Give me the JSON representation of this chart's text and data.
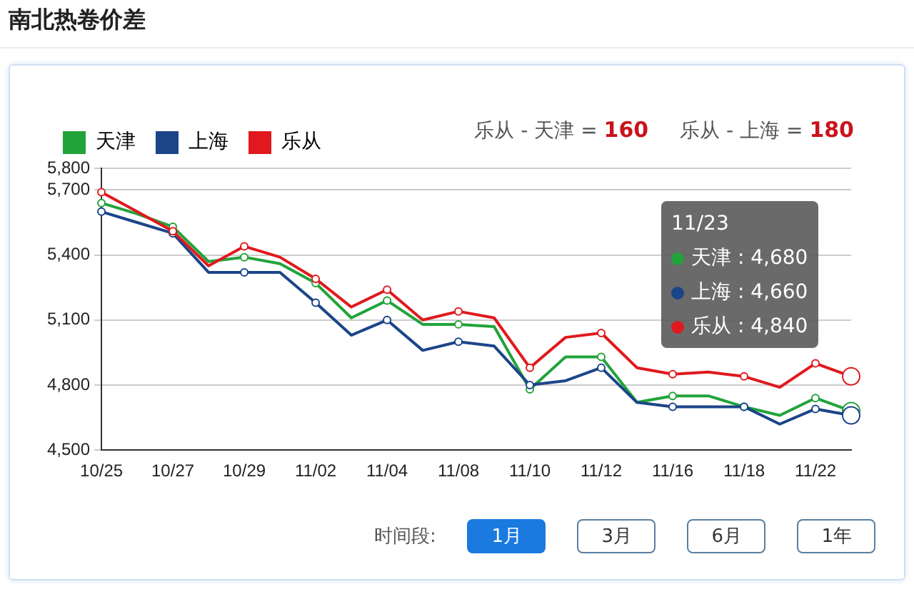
{
  "chart_data": {
    "type": "line",
    "title": "南北热卷价差",
    "categories": [
      "10/25",
      null,
      "10/27",
      null,
      "10/29",
      null,
      "11/02",
      null,
      "11/04",
      null,
      "11/08",
      null,
      "11/10",
      null,
      "11/12",
      null,
      "11/16",
      null,
      "11/18",
      null,
      "11/22",
      null
    ],
    "series": [
      {
        "name": "天津",
        "color": "#22a33a",
        "values": [
          5640,
          5590,
          5530,
          5370,
          5390,
          5360,
          5270,
          5110,
          5190,
          5080,
          5080,
          5070,
          4780,
          4930,
          4930,
          4720,
          4750,
          4750,
          4700,
          4660,
          4740,
          4680
        ]
      },
      {
        "name": "上海",
        "color": "#1b4589",
        "values": [
          5600,
          5550,
          5500,
          5320,
          5320,
          5320,
          5180,
          5030,
          5100,
          4960,
          5000,
          4980,
          4800,
          4820,
          4880,
          4720,
          4700,
          4700,
          4700,
          4620,
          4690,
          4660
        ]
      },
      {
        "name": "乐从",
        "color": "#e0191e",
        "values": [
          5690,
          5600,
          5510,
          5350,
          5440,
          5390,
          5290,
          5160,
          5240,
          5100,
          5140,
          5110,
          4880,
          5020,
          5040,
          4880,
          4850,
          4860,
          4840,
          4790,
          4900,
          4840
        ]
      }
    ],
    "ylim": [
      4500,
      5800
    ],
    "yticks": [
      {
        "value": 4500,
        "label": "4,500"
      },
      {
        "value": 4800,
        "label": "4,800"
      },
      {
        "value": 5100,
        "label": "5,100"
      },
      {
        "value": 5400,
        "label": "5,400"
      },
      {
        "value": 5700,
        "label": "5,700"
      },
      {
        "value": 5800,
        "label": "5,800"
      }
    ],
    "grid": "y",
    "legend": "top left",
    "marker": "circle",
    "line_style": "solid",
    "annotations": [
      "乐从 - 天津 = 160",
      "乐从 - 上海 = 180",
      "11/23",
      "天津 : 4,680",
      "上海 : 4,660",
      "乐从 : 4,840",
      "时间段:",
      "1月",
      "3月",
      "6月",
      "1年"
    ]
  }
}
